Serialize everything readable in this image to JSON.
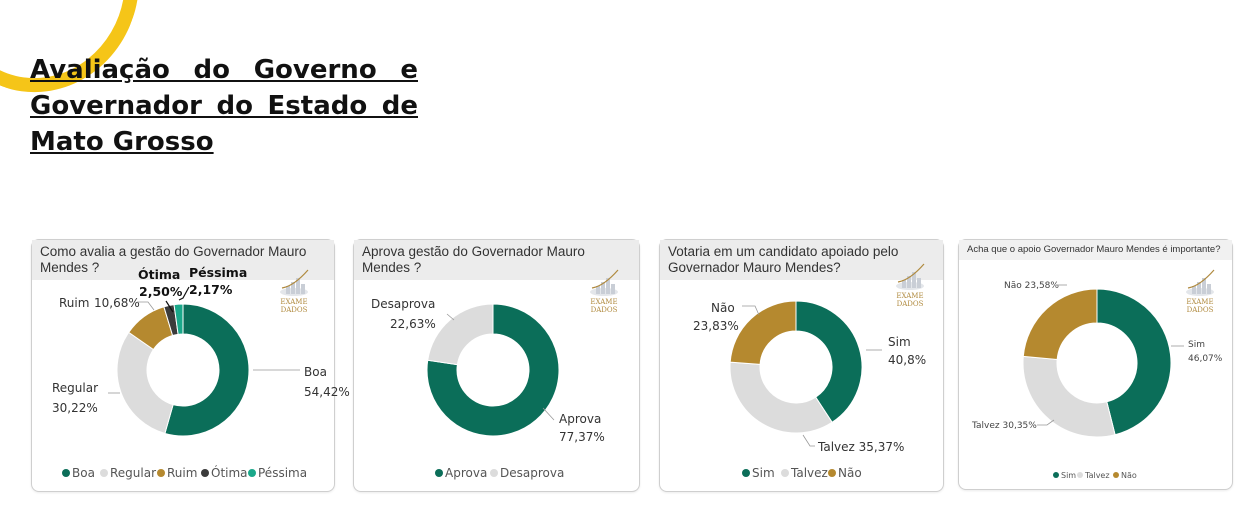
{
  "page": {
    "title": "Avaliação do Governo e Governador do Estado de Mato Grosso"
  },
  "colors": {
    "green": "#0b6e59",
    "gray": "#dcdcdc",
    "gold": "#b5892f",
    "dark": "#3b3b3b",
    "teal": "#1aa88a",
    "accent": "#f5c518"
  },
  "logo": {
    "line1": "EXAME",
    "line2": "DADOS"
  },
  "chart_data": [
    {
      "type": "pie",
      "title": "Como avalia a gestão do Governador Mauro Mendes ?",
      "slices": [
        {
          "name": "Boa",
          "value": 54.42,
          "label": "54,42%",
          "color": "#0b6e59"
        },
        {
          "name": "Regular",
          "value": 30.22,
          "label": "30,22%",
          "color": "#dcdcdc"
        },
        {
          "name": "Ruim",
          "value": 10.68,
          "label": "10,68%",
          "color": "#b5892f"
        },
        {
          "name": "Ótima",
          "value": 2.5,
          "label": "2,50%",
          "color": "#3b3b3b"
        },
        {
          "name": "Péssima",
          "value": 2.17,
          "label": "2,17%",
          "color": "#1aa88a"
        }
      ],
      "legend": [
        "Boa",
        "Regular",
        "Ruim",
        "Ótima",
        "Péssima"
      ]
    },
    {
      "type": "pie",
      "title": "Aprova gestão do Governador Mauro Mendes ?",
      "slices": [
        {
          "name": "Aprova",
          "value": 77.37,
          "label": "77,37%",
          "color": "#0b6e59"
        },
        {
          "name": "Desaprova",
          "value": 22.63,
          "label": "22,63%",
          "color": "#dcdcdc"
        }
      ],
      "legend": [
        "Aprova",
        "Desaprova"
      ]
    },
    {
      "type": "pie",
      "title": "Votaria em um candidato apoiado pelo Governador Mauro Mendes?",
      "slices": [
        {
          "name": "Sim",
          "value": 40.8,
          "label": "40,8%",
          "color": "#0b6e59"
        },
        {
          "name": "Talvez",
          "value": 35.37,
          "label": "35,37%",
          "color": "#dcdcdc"
        },
        {
          "name": "Não",
          "value": 23.83,
          "label": "23,83%",
          "color": "#b5892f"
        }
      ],
      "legend": [
        "Sim",
        "Talvez",
        "Não"
      ]
    },
    {
      "type": "pie",
      "title": "Acha que o apoio Governador Mauro Mendes é importante?",
      "slices": [
        {
          "name": "Sim",
          "value": 46.07,
          "label": "46,07%",
          "color": "#0b6e59"
        },
        {
          "name": "Talvez",
          "value": 30.35,
          "label": "30,35%",
          "color": "#dcdcdc"
        },
        {
          "name": "Não",
          "value": 23.58,
          "label": "23,58%",
          "color": "#b5892f"
        }
      ],
      "legend": [
        "Sim",
        "Talvez",
        "Não"
      ]
    }
  ]
}
